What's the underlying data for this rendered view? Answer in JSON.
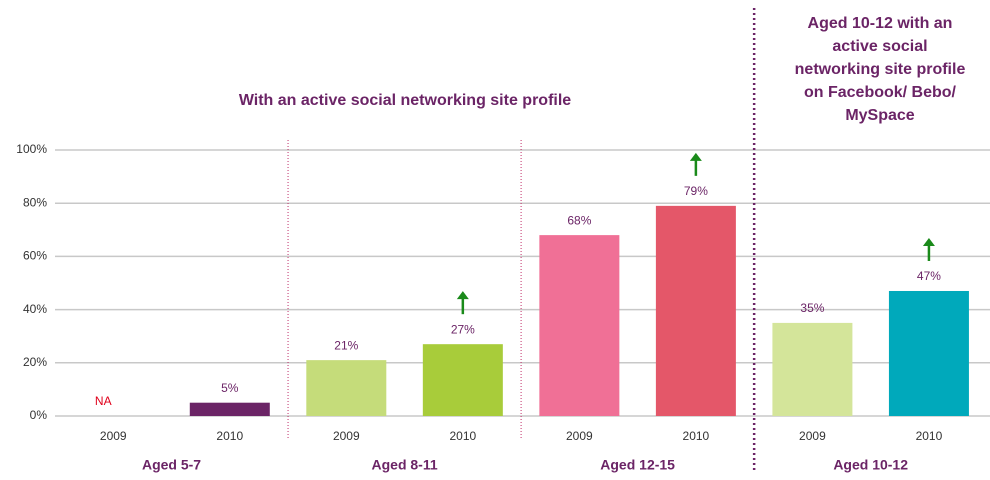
{
  "chart_data": {
    "type": "bar",
    "title": "With an active social networking site profile",
    "annotation": [
      "Aged 10-12 with an",
      "active social",
      "networking site profile",
      "on Facebook/ Bebo/",
      "MySpace"
    ],
    "ylim": [
      0,
      100
    ],
    "yticks": [
      {
        "value": 0,
        "label": "0%"
      },
      {
        "value": 20,
        "label": "20%"
      },
      {
        "value": 40,
        "label": "40%"
      },
      {
        "value": 60,
        "label": "60%"
      },
      {
        "value": 80,
        "label": "80%"
      },
      {
        "value": 100,
        "label": "100%"
      }
    ],
    "grid": true,
    "groups": [
      {
        "name": "Aged 5-7",
        "categories": [
          "2009",
          "2010"
        ],
        "values": [
          null,
          5
        ],
        "value_labels": [
          "NA",
          "5%"
        ],
        "colors": [
          "#c5dc7a",
          "#6b2466"
        ],
        "increase": [
          false,
          false
        ]
      },
      {
        "name": "Aged 8-11",
        "categories": [
          "2009",
          "2010"
        ],
        "values": [
          21,
          27
        ],
        "value_labels": [
          "21%",
          "27%"
        ],
        "colors": [
          "#c5dc7a",
          "#a8cc3a"
        ],
        "increase": [
          false,
          true
        ]
      },
      {
        "name": "Aged 12-15",
        "categories": [
          "2009",
          "2010"
        ],
        "values": [
          68,
          79
        ],
        "value_labels": [
          "68%",
          "79%"
        ],
        "colors": [
          "#f07096",
          "#e45769"
        ],
        "increase": [
          false,
          true
        ]
      },
      {
        "name": "Aged 10-12",
        "categories": [
          "2009",
          "2010"
        ],
        "values": [
          35,
          47
        ],
        "value_labels": [
          "35%",
          "47%"
        ],
        "colors": [
          "#d4e59a",
          "#00a9bb"
        ],
        "increase": [
          false,
          true
        ]
      }
    ]
  }
}
